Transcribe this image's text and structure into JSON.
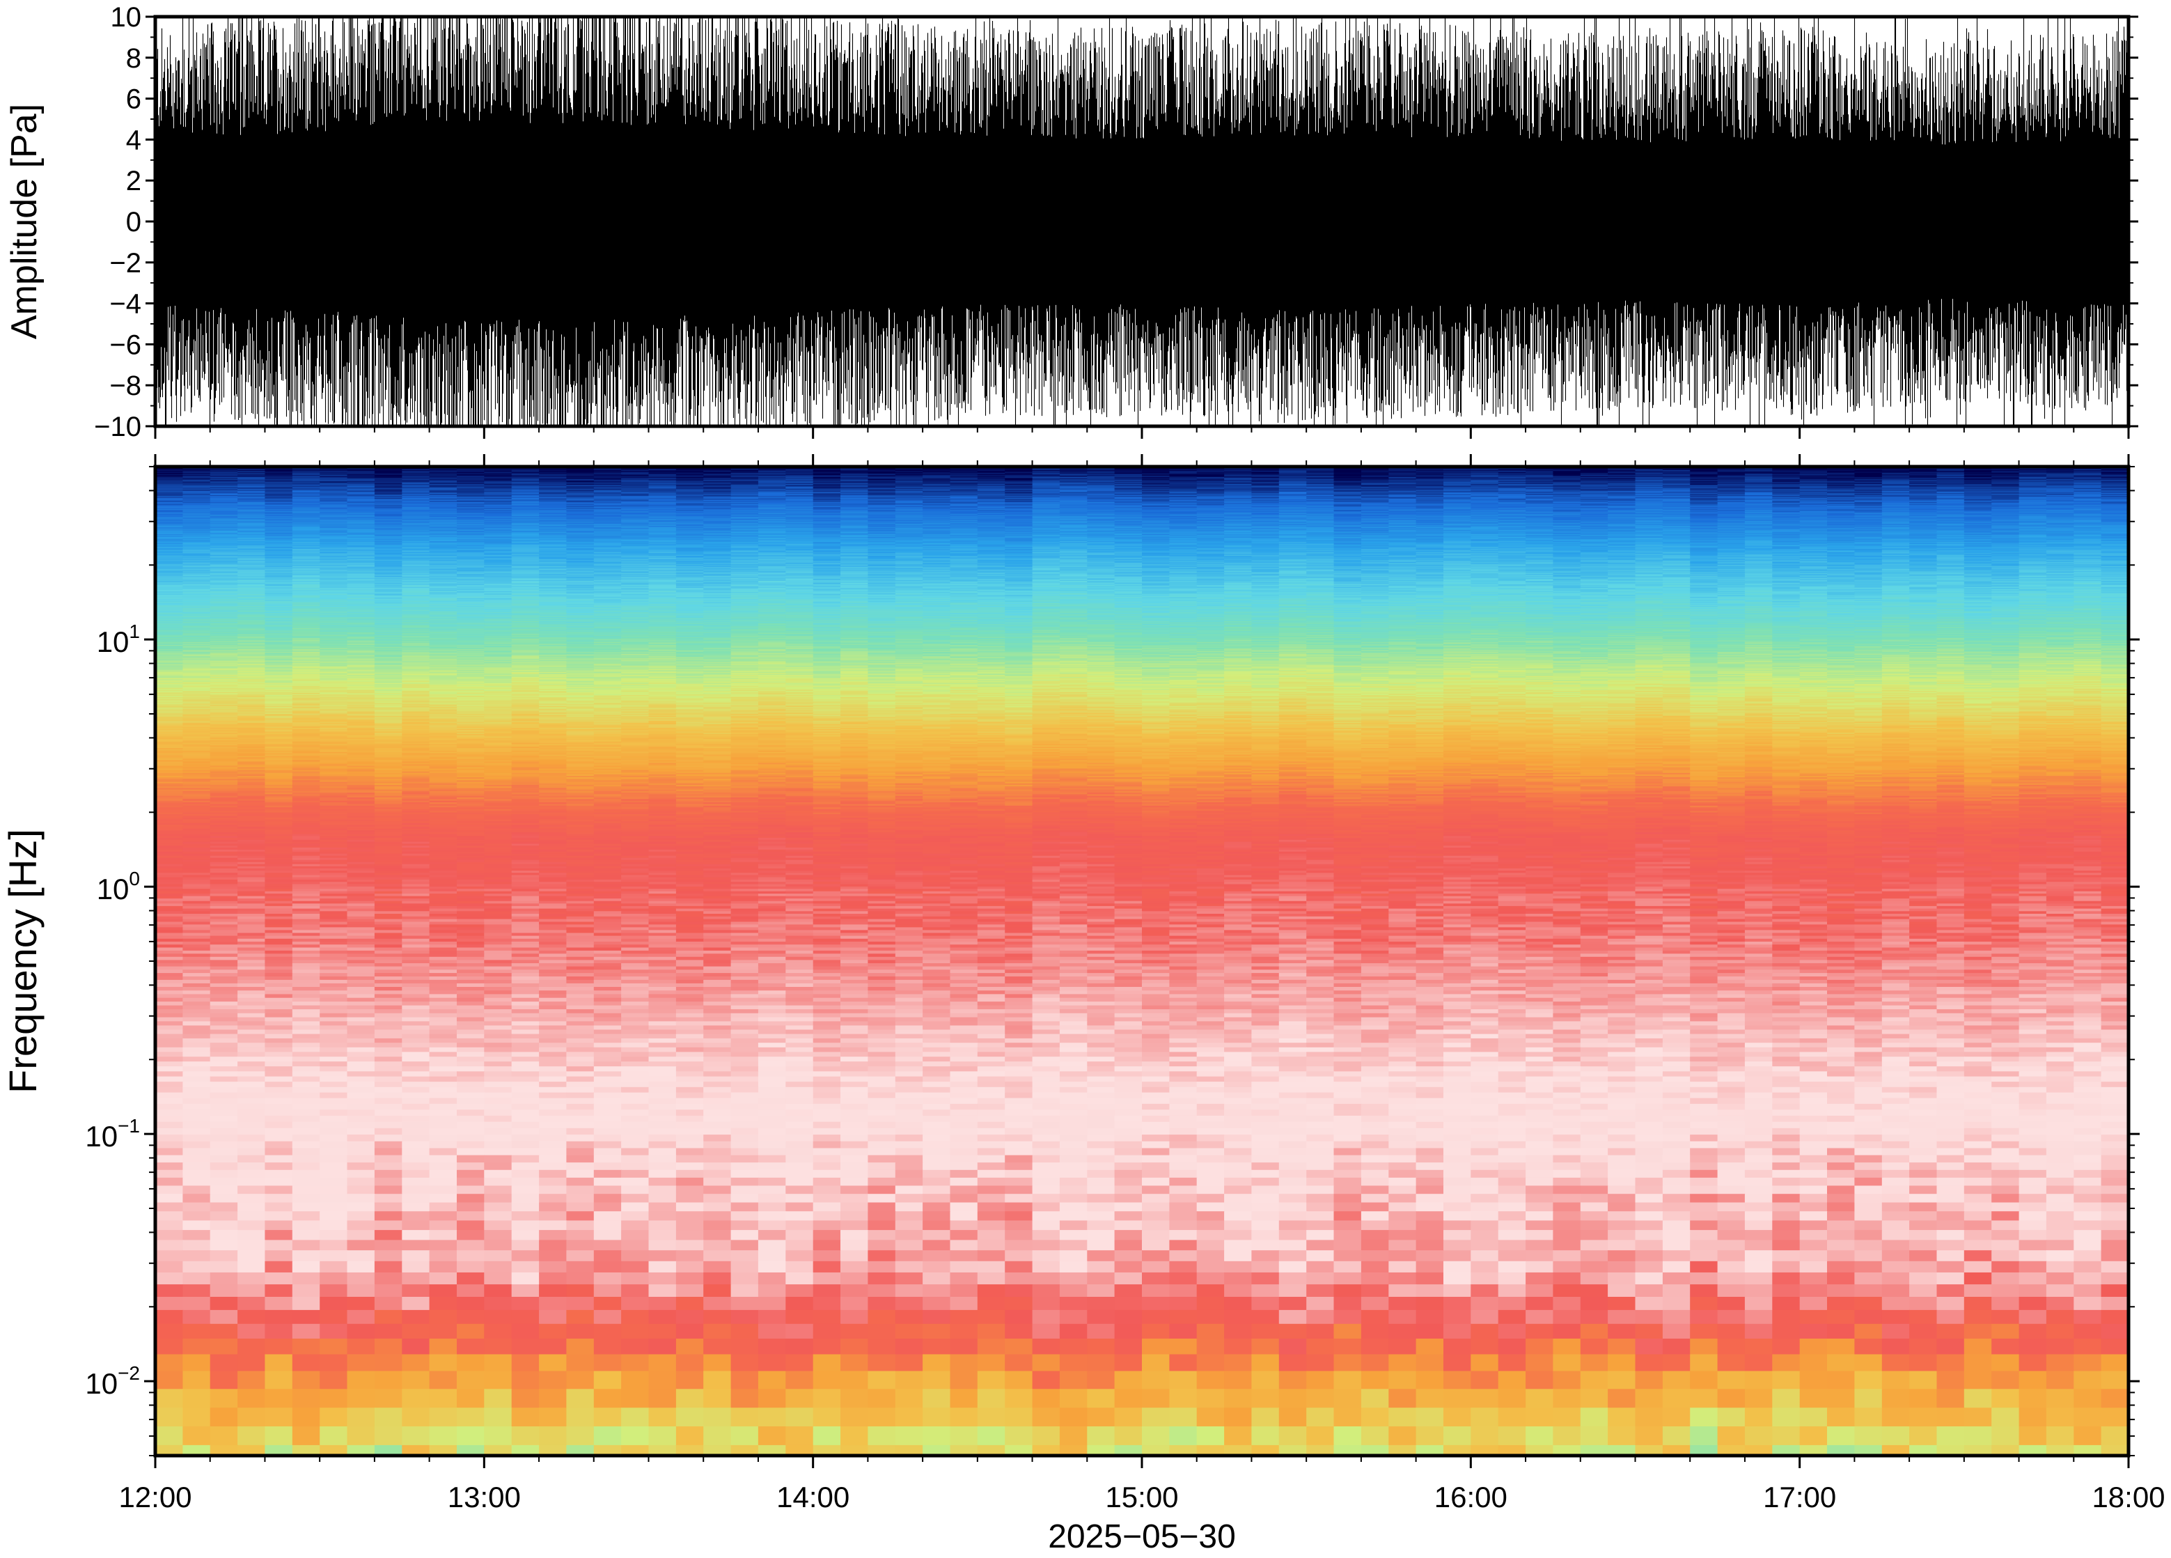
{
  "chart_data": [
    {
      "type": "line",
      "title": "",
      "ylabel": "Amplitude [Pa]",
      "ylim": [
        -10,
        10
      ],
      "yticks": [
        -10,
        -8,
        -6,
        -4,
        -2,
        0,
        2,
        4,
        6,
        8,
        10
      ],
      "ytick_labels": [
        "−10",
        "−8",
        "−6",
        "−4",
        "−2",
        "0",
        "2",
        "4",
        "6",
        "8",
        "10"
      ],
      "xlim": [
        "12:00",
        "18:00"
      ],
      "series": [
        {
          "color": "#000000",
          "envelope_hours": [
            12.0,
            12.5,
            13.0,
            13.5,
            14.0,
            14.5,
            15.0,
            15.5,
            16.0,
            16.5,
            17.0,
            17.5,
            18.0
          ],
          "typical_peak_pa": [
            6.5,
            7.0,
            7.8,
            7.5,
            7.0,
            6.5,
            6.5,
            6.8,
            6.5,
            6.2,
            6.5,
            6.0,
            6.5
          ]
        }
      ]
    },
    {
      "type": "heatmap",
      "ylabel": "Frequency [Hz]",
      "xlabel": "2025−05−30",
      "yscale": "log",
      "ylim": [
        0.005,
        50
      ],
      "ytick_labels": [
        {
          "value": 0.01,
          "base": "10",
          "exp": "−2"
        },
        {
          "value": 0.1,
          "base": "10",
          "exp": "−1"
        },
        {
          "value": 1,
          "base": "10",
          "exp": "0"
        },
        {
          "value": 10,
          "base": "10",
          "exp": "1"
        }
      ],
      "xticks": [
        "12:00",
        "13:00",
        "14:00",
        "15:00",
        "16:00",
        "17:00",
        "18:00"
      ],
      "colormap": [
        "#00004d",
        "#1a6bd8",
        "#2aa3ea",
        "#5fd6e6",
        "#7fe0b4",
        "#d2ee7c",
        "#f2c24b",
        "#f7a33c",
        "#f56a4e",
        "#f25b58",
        "#f6a3a3",
        "#fde1e1",
        "#fbdada"
      ],
      "frequency_profile_hz": [
        0.006,
        0.01,
        0.015,
        0.02,
        0.04,
        0.1,
        0.3,
        1,
        2,
        4,
        8,
        15,
        30,
        48
      ]
    }
  ]
}
